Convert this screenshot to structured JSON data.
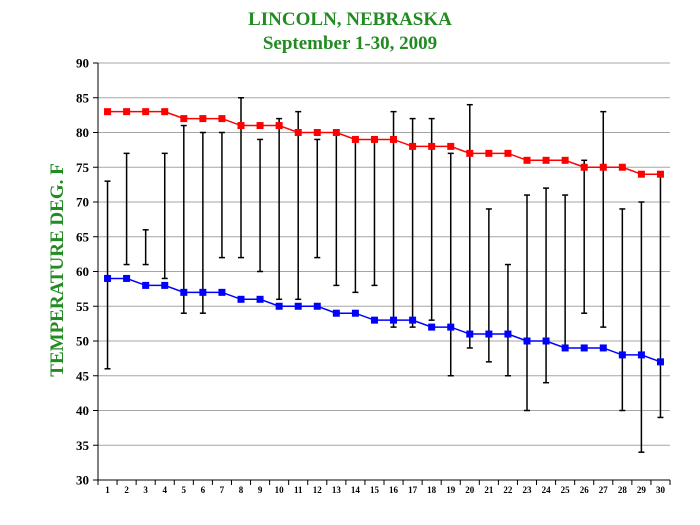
{
  "chart_data": {
    "type": "line",
    "title": "LINCOLN, NEBRASKA",
    "subtitle": "September 1-30, 2009",
    "xlabel": "",
    "ylabel": "TEMPERATURE DEG. F",
    "ylim": [
      30,
      90
    ],
    "yticks": [
      30,
      35,
      40,
      45,
      50,
      55,
      60,
      65,
      70,
      75,
      80,
      85,
      90
    ],
    "x": [
      1,
      2,
      3,
      4,
      5,
      6,
      7,
      8,
      9,
      10,
      11,
      12,
      13,
      14,
      15,
      16,
      17,
      18,
      19,
      20,
      21,
      22,
      23,
      24,
      25,
      26,
      27,
      28,
      29,
      30
    ],
    "grid": true,
    "series": [
      {
        "color": "#ff0000",
        "marker": "square",
        "values": [
          83,
          83,
          83,
          83,
          82,
          82,
          82,
          81,
          81,
          81,
          80,
          80,
          80,
          79,
          79,
          79,
          78,
          78,
          78,
          77,
          77,
          77,
          76,
          76,
          76,
          75,
          75,
          75,
          74,
          74
        ]
      },
      {
        "color": "#0000ff",
        "marker": "square",
        "values": [
          59,
          59,
          58,
          58,
          57,
          57,
          57,
          56,
          56,
          55,
          55,
          55,
          54,
          54,
          53,
          53,
          53,
          52,
          52,
          51,
          51,
          51,
          50,
          50,
          49,
          49,
          49,
          48,
          48,
          47
        ]
      }
    ],
    "range_bars": {
      "color": "#000000",
      "high": [
        73,
        77,
        66,
        77,
        81,
        80,
        80,
        85,
        79,
        82,
        83,
        79,
        80,
        79,
        79,
        83,
        82,
        82,
        77,
        84,
        69,
        61,
        71,
        72,
        71,
        76,
        83,
        69,
        70,
        74
      ],
      "low": [
        46,
        61,
        61,
        59,
        54,
        54,
        62,
        62,
        60,
        56,
        56,
        62,
        58,
        57,
        58,
        52,
        52,
        53,
        45,
        49,
        47,
        45,
        40,
        44,
        49,
        54,
        52,
        40,
        34,
        39
      ]
    }
  }
}
